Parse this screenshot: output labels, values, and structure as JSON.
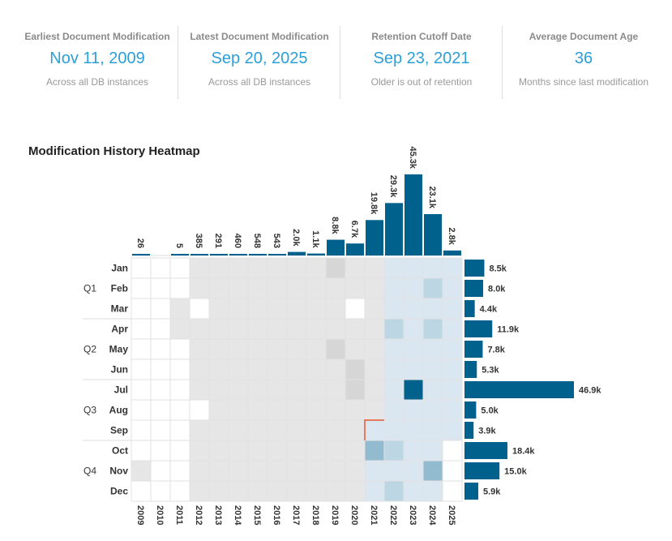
{
  "stats": [
    {
      "label": "Earliest Document Modification",
      "value": "Nov 11, 2009",
      "sub": "Across all DB instances"
    },
    {
      "label": "Latest Document Modification",
      "value": "Sep 20, 2025",
      "sub": "Across all DB instances"
    },
    {
      "label": "Retention Cutoff Date",
      "value": "Sep 23, 2021",
      "sub": "Older is out of retention"
    },
    {
      "label": "Average Document Age",
      "value": "36",
      "sub": "Months since last modification"
    }
  ],
  "colors": {
    "accent": "#2a9fd8",
    "bar": "#00628c",
    "cutoff": "#e8572e",
    "out_of_retention": "#e6e6e6",
    "out_of_retention_dark": "#d6d6d6",
    "in_retention": "#dbe7f0",
    "in_retention_mid": "#bdd6e4",
    "in_retention_high": "#93bbd0",
    "in_retention_max": "#00628c"
  },
  "chart_data": {
    "type": "heatmap",
    "title": "Modification History Heatmap",
    "years": [
      "2009",
      "2010",
      "2011",
      "2012",
      "2013",
      "2014",
      "2015",
      "2016",
      "2017",
      "2018",
      "2019",
      "2020",
      "2021",
      "2022",
      "2023",
      "2024",
      "2025"
    ],
    "year_totals": [
      26,
      0,
      5,
      385,
      291,
      460,
      548,
      543,
      2000,
      1100,
      8800,
      6700,
      19800,
      29300,
      45300,
      23100,
      2800
    ],
    "year_total_labels": [
      "26",
      "",
      "5",
      "385",
      "291",
      "460",
      "548",
      "543",
      "2.0k",
      "1.1k",
      "8.8k",
      "6.7k",
      "19.8k",
      "29.3k",
      "45.3k",
      "23.1k",
      "2.8k"
    ],
    "months": [
      "Jan",
      "Feb",
      "Mar",
      "Apr",
      "May",
      "Jun",
      "Jul",
      "Aug",
      "Sep",
      "Oct",
      "Nov",
      "Dec"
    ],
    "quarters": [
      "Q1",
      "Q2",
      "Q3",
      "Q4"
    ],
    "month_totals": [
      8500,
      8000,
      4400,
      11900,
      7800,
      5300,
      46900,
      5000,
      3900,
      18400,
      15000,
      5900
    ],
    "month_total_labels": [
      "8.5k",
      "8.0k",
      "4.4k",
      "11.9k",
      "7.8k",
      "5.3k",
      "46.9k",
      "5.0k",
      "3.9k",
      "18.4k",
      "15.0k",
      "5.9k"
    ],
    "retention_cutoff": {
      "year": "2021",
      "month": "Sep"
    },
    "cell_levels_legend": "0 none, 1 low, 2 medium, 3 high, 4 max",
    "cells": [
      [
        0,
        0,
        0,
        1,
        1,
        1,
        1,
        1,
        1,
        1,
        2,
        1,
        1,
        1,
        1,
        1,
        1
      ],
      [
        0,
        0,
        0,
        1,
        1,
        1,
        1,
        1,
        1,
        1,
        1,
        1,
        1,
        1,
        1,
        2,
        1
      ],
      [
        0,
        0,
        1,
        0,
        1,
        1,
        1,
        1,
        1,
        1,
        1,
        0,
        1,
        1,
        1,
        1,
        1
      ],
      [
        0,
        0,
        1,
        1,
        1,
        1,
        1,
        1,
        1,
        1,
        1,
        1,
        1,
        2,
        1,
        2,
        1
      ],
      [
        0,
        0,
        0,
        1,
        1,
        1,
        1,
        1,
        1,
        1,
        2,
        1,
        1,
        1,
        1,
        1,
        1
      ],
      [
        0,
        0,
        0,
        1,
        1,
        1,
        1,
        1,
        1,
        1,
        1,
        2,
        1,
        1,
        1,
        1,
        1
      ],
      [
        0,
        0,
        0,
        1,
        1,
        1,
        1,
        1,
        1,
        1,
        1,
        2,
        1,
        1,
        4,
        1,
        1
      ],
      [
        0,
        0,
        0,
        0,
        1,
        1,
        1,
        1,
        1,
        1,
        1,
        1,
        1,
        1,
        1,
        1,
        1
      ],
      [
        0,
        0,
        0,
        1,
        1,
        1,
        1,
        1,
        1,
        1,
        1,
        1,
        1,
        1,
        1,
        1,
        1
      ],
      [
        0,
        0,
        0,
        1,
        1,
        1,
        1,
        1,
        1,
        1,
        1,
        1,
        3,
        2,
        1,
        1,
        0
      ],
      [
        1,
        0,
        0,
        1,
        1,
        1,
        1,
        1,
        1,
        1,
        1,
        1,
        1,
        1,
        1,
        3,
        0
      ],
      [
        0,
        0,
        0,
        1,
        1,
        1,
        1,
        1,
        1,
        1,
        1,
        1,
        1,
        2,
        1,
        1,
        0
      ]
    ]
  }
}
